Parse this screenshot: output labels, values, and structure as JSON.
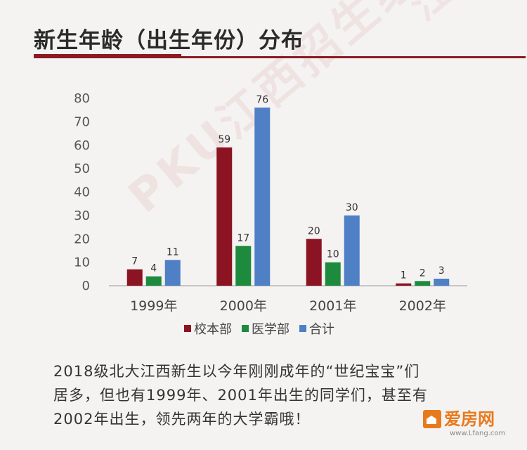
{
  "header": {
    "title": "新生年龄（出生年份）分布"
  },
  "watermark": {
    "text": "PKU江西招生组",
    "text2": "江西招生组"
  },
  "chart_data": {
    "type": "bar",
    "categories": [
      "1999年",
      "2000年",
      "2001年",
      "2002年"
    ],
    "series": [
      {
        "name": "校本部",
        "values": [
          7,
          59,
          20,
          1
        ],
        "color": "#8b1322"
      },
      {
        "name": "医学部",
        "values": [
          4,
          17,
          10,
          2
        ],
        "color": "#1e8a3e"
      },
      {
        "name": "合计",
        "values": [
          11,
          76,
          30,
          3
        ],
        "color": "#4f7fc4"
      }
    ],
    "yticks": [
      0,
      10,
      20,
      30,
      40,
      50,
      60,
      70,
      80
    ],
    "ylim": [
      0,
      80
    ],
    "grid": false,
    "legend": "bottom"
  },
  "caption": {
    "line1": "2018级北大江西新生以今年刚刚成年的“世纪宝宝”们",
    "line2": "居多，但也有1999年、2001年出生的同学们，甚至有",
    "line3": "2002年出生，领先两年的大学霸哦！"
  },
  "logo": {
    "name": "爱房网",
    "url": "www.Lfang.com"
  }
}
